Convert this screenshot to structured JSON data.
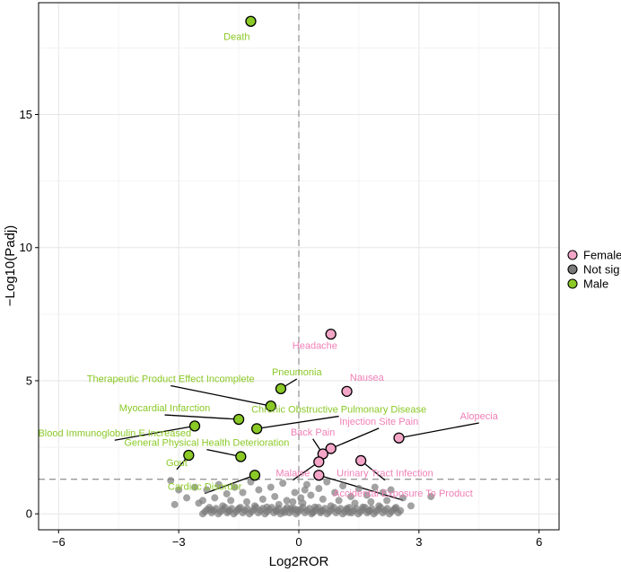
{
  "chart_data": {
    "type": "scatter",
    "title": "",
    "xlabel": "Log2ROR",
    "ylabel": "−Log10(Padj)",
    "xlim": [
      -6.5,
      6.5
    ],
    "ylim": [
      -0.6,
      19.2
    ],
    "x_ticks": [
      -6,
      -3,
      0,
      3,
      6
    ],
    "y_ticks": [
      0,
      5,
      10,
      15
    ],
    "x_ticks_text": [
      "−6",
      "−3",
      "0",
      "3",
      "6"
    ],
    "y_ticks_text": [
      "0",
      "5",
      "10",
      "15"
    ],
    "grid": true,
    "threshold_lines": {
      "x": 0,
      "y": 1.3
    },
    "legend": {
      "position": "right",
      "entries": [
        {
          "name": "Female",
          "color": "#f4a6c8"
        },
        {
          "name": "Not sig",
          "color": "#7a7a7a"
        },
        {
          "name": "Male",
          "color": "#8ac926"
        }
      ]
    },
    "colors": {
      "female_fill": "#f4a6c8",
      "female_text": "#f07fb6",
      "male_fill": "#8ac926",
      "male_text": "#8ac926",
      "notsig": "#7a7a7a"
    },
    "series": [
      {
        "name": "Female",
        "points": [
          {
            "label": "Headache",
            "x": 0.8,
            "y": 6.75,
            "lx": 0.4,
            "ly": 6.2,
            "line": false
          },
          {
            "label": "Nausea",
            "x": 1.2,
            "y": 4.6,
            "lx": 1.7,
            "ly": 5.0,
            "line": false
          },
          {
            "label": "Alopecia",
            "x": 2.5,
            "y": 2.85,
            "lx": 4.5,
            "ly": 3.55,
            "line": true
          },
          {
            "label": "Injection Site Pain",
            "x": 0.8,
            "y": 2.45,
            "lx": 2.0,
            "ly": 3.35,
            "line": true
          },
          {
            "label": "Back Pain",
            "x": 0.6,
            "y": 2.25,
            "lx": 0.35,
            "ly": 2.95,
            "line": true
          },
          {
            "label": "Urinary Tract Infection",
            "x": 1.55,
            "y": 2.0,
            "lx": 2.15,
            "ly": 1.4,
            "line": true
          },
          {
            "label": "Malaise",
            "x": 0.5,
            "y": 1.95,
            "lx": -0.15,
            "ly": 1.4,
            "line": true
          },
          {
            "label": "Accidental Exposure To Product",
            "x": 0.5,
            "y": 1.45,
            "lx": 2.6,
            "ly": 0.65,
            "line": true
          }
        ]
      },
      {
        "name": "Male",
        "points": [
          {
            "label": "Death",
            "x": -1.2,
            "y": 18.5,
            "lx": -1.55,
            "ly": 17.8,
            "line": false
          },
          {
            "label": "Pneumonia",
            "x": -0.45,
            "y": 4.7,
            "lx": -0.05,
            "ly": 5.2,
            "line": true
          },
          {
            "label": "Therapeutic Product Effect Incomplete",
            "x": -0.7,
            "y": 4.05,
            "lx": -3.2,
            "ly": 4.95,
            "line": true
          },
          {
            "label": "Myocardial Infarction",
            "x": -1.5,
            "y": 3.55,
            "lx": -3.35,
            "ly": 3.85,
            "line": true
          },
          {
            "label": "Chronic Obstructive Pulmonary Disease",
            "x": -1.05,
            "y": 3.2,
            "lx": 1.0,
            "ly": 3.8,
            "line": true
          },
          {
            "label": "Blood Immunoglobulin E Increased",
            "x": -2.6,
            "y": 3.3,
            "lx": -4.6,
            "ly": 2.9,
            "line": true
          },
          {
            "label": "General Physical Health Deterioration",
            "x": -1.45,
            "y": 2.15,
            "lx": -2.3,
            "ly": 2.55,
            "line": true
          },
          {
            "label": "Gout",
            "x": -2.75,
            "y": 2.2,
            "lx": -3.05,
            "ly": 1.8,
            "line": true
          },
          {
            "label": "Cardiac Disorder",
            "x": -1.1,
            "y": 1.45,
            "lx": -2.35,
            "ly": 0.9,
            "line": true
          }
        ]
      },
      {
        "name": "Not sig",
        "points": [
          {
            "x": -3.2,
            "y": 1.25
          },
          {
            "x": -3.0,
            "y": 0.9
          },
          {
            "x": -2.6,
            "y": 1.0
          },
          {
            "x": -3.1,
            "y": 0.35
          },
          {
            "x": -2.8,
            "y": 0.6
          },
          {
            "x": -2.5,
            "y": 0.4
          },
          {
            "x": -2.3,
            "y": 0.9
          },
          {
            "x": -2.1,
            "y": 0.6
          },
          {
            "x": -2.0,
            "y": 1.1
          },
          {
            "x": -1.9,
            "y": 0.3
          },
          {
            "x": -1.8,
            "y": 0.75
          },
          {
            "x": -1.7,
            "y": 0.5
          },
          {
            "x": -1.6,
            "y": 1.0
          },
          {
            "x": -1.5,
            "y": 0.2
          },
          {
            "x": -1.4,
            "y": 0.8
          },
          {
            "x": -1.3,
            "y": 0.45
          },
          {
            "x": -1.2,
            "y": 1.2
          },
          {
            "x": -1.1,
            "y": 0.3
          },
          {
            "x": -1.0,
            "y": 0.9
          },
          {
            "x": -0.9,
            "y": 0.55
          },
          {
            "x": -0.8,
            "y": 0.25
          },
          {
            "x": -0.7,
            "y": 1.0
          },
          {
            "x": -0.6,
            "y": 0.65
          },
          {
            "x": -0.5,
            "y": 0.35
          },
          {
            "x": -0.4,
            "y": 1.15
          },
          {
            "x": -0.3,
            "y": 0.5
          },
          {
            "x": -0.2,
            "y": 0.2
          },
          {
            "x": -0.1,
            "y": 0.8
          },
          {
            "x": 0.1,
            "y": 0.4
          },
          {
            "x": 0.2,
            "y": 1.1
          },
          {
            "x": 0.3,
            "y": 0.7
          },
          {
            "x": 0.4,
            "y": 0.25
          },
          {
            "x": 0.5,
            "y": 0.95
          },
          {
            "x": 0.6,
            "y": 0.55
          },
          {
            "x": 0.7,
            "y": 1.2
          },
          {
            "x": 0.8,
            "y": 0.3
          },
          {
            "x": 0.9,
            "y": 0.8
          },
          {
            "x": 1.0,
            "y": 0.5
          },
          {
            "x": 1.1,
            "y": 1.05
          },
          {
            "x": 1.2,
            "y": 0.2
          },
          {
            "x": 1.3,
            "y": 0.65
          },
          {
            "x": 1.4,
            "y": 0.4
          },
          {
            "x": 1.5,
            "y": 0.95
          },
          {
            "x": 1.6,
            "y": 0.25
          },
          {
            "x": 1.7,
            "y": 0.7
          },
          {
            "x": 1.8,
            "y": 0.45
          },
          {
            "x": 1.9,
            "y": 1.0
          },
          {
            "x": 2.0,
            "y": 0.3
          },
          {
            "x": 2.1,
            "y": 0.8
          },
          {
            "x": 2.2,
            "y": 0.5
          },
          {
            "x": 2.4,
            "y": 0.2
          },
          {
            "x": 2.6,
            "y": 0.6
          },
          {
            "x": 2.8,
            "y": 0.3
          },
          {
            "x": 3.3,
            "y": 0.65
          },
          {
            "x": -2.2,
            "y": 0.15
          },
          {
            "x": 2.3,
            "y": 0.9
          },
          {
            "x": -2.4,
            "y": 0.5
          },
          {
            "x": -1.75,
            "y": 0.1
          },
          {
            "x": 1.75,
            "y": 0.1
          },
          {
            "x": -0.05,
            "y": 0.15
          },
          {
            "x": 0.05,
            "y": 0.6
          },
          {
            "x": -0.15,
            "y": 0.45
          },
          {
            "x": 0.15,
            "y": 0.9
          },
          {
            "x": 0.35,
            "y": 0.05
          },
          {
            "x": -0.35,
            "y": 0.05
          },
          {
            "x": 0.55,
            "y": 0.1
          },
          {
            "x": -0.55,
            "y": 0.1
          },
          {
            "x": 1.25,
            "y": 0.05
          }
        ]
      }
    ]
  }
}
